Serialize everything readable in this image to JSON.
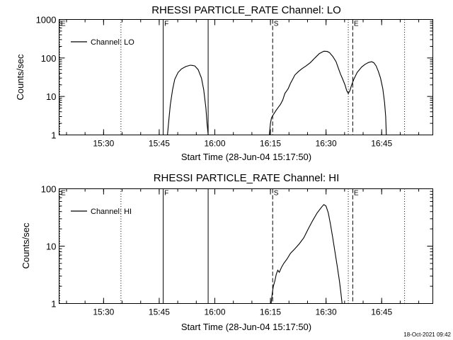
{
  "footer": {
    "timestamp": "18-Oct-2021 09:42"
  },
  "chart_data": [
    {
      "type": "line",
      "title": "RHESSI PARTICLE_RATE Channel: LO",
      "xlabel": "Start Time (28-Jun-04 15:17:50)",
      "ylabel": "Counts/sec",
      "yscale": "log",
      "xlim": [
        15.3,
        16.98
      ],
      "ylim": [
        1,
        1000
      ],
      "xticks": [
        {
          "t": 15.5,
          "label": "15:30"
        },
        {
          "t": 15.75,
          "label": "15:45"
        },
        {
          "t": 16.0,
          "label": "16:00"
        },
        {
          "t": 16.25,
          "label": "16:15"
        },
        {
          "t": 16.5,
          "label": "16:30"
        },
        {
          "t": 16.75,
          "label": "16:45"
        }
      ],
      "yticks": [
        {
          "v": 1,
          "label": "1"
        },
        {
          "v": 10,
          "label": "10"
        },
        {
          "v": 100,
          "label": "100"
        },
        {
          "v": 1000,
          "label": "1000"
        }
      ],
      "legend": {
        "label": "Channel: LO",
        "placement": "top-left"
      },
      "markers": [
        {
          "t": 15.303,
          "style": "dotted",
          "label": "E"
        },
        {
          "t": 15.578,
          "style": "dotted",
          "label": ""
        },
        {
          "t": 15.768,
          "style": "solid",
          "label": "F"
        },
        {
          "t": 15.97,
          "style": "solid",
          "label": ""
        },
        {
          "t": 16.26,
          "style": "dashed",
          "label": "S"
        },
        {
          "t": 16.6,
          "style": "dotted",
          "label": ""
        },
        {
          "t": 16.62,
          "style": "dashed",
          "label": "E"
        },
        {
          "t": 16.853,
          "style": "dotted",
          "label": ""
        }
      ],
      "series": [
        {
          "segments": [
            [
              [
                15.787,
                1
              ],
              [
                15.792,
                2
              ],
              [
                15.8,
                6
              ],
              [
                15.81,
                15
              ],
              [
                15.82,
                28
              ],
              [
                15.835,
                42
              ],
              [
                15.85,
                52
              ],
              [
                15.87,
                60
              ],
              [
                15.89,
                65
              ],
              [
                15.9,
                64
              ],
              [
                15.91,
                62
              ],
              [
                15.925,
                50
              ],
              [
                15.94,
                30
              ],
              [
                15.95,
                15
              ],
              [
                15.96,
                5
              ],
              [
                15.965,
                2
              ],
              [
                15.97,
                1
              ]
            ],
            [
              [
                16.245,
                1
              ],
              [
                16.25,
                2
              ],
              [
                16.255,
                2.8
              ],
              [
                16.265,
                3.5
              ],
              [
                16.275,
                4.3
              ],
              [
                16.285,
                5.2
              ],
              [
                16.295,
                6.2
              ],
              [
                16.305,
                8
              ],
              [
                16.315,
                12
              ],
              [
                16.33,
                16
              ],
              [
                16.34,
                22
              ],
              [
                16.35,
                28
              ],
              [
                16.36,
                36
              ],
              [
                16.375,
                44
              ],
              [
                16.39,
                52
              ],
              [
                16.41,
                62
              ],
              [
                16.43,
                76
              ],
              [
                16.45,
                100
              ],
              [
                16.47,
                130
              ],
              [
                16.49,
                150
              ],
              [
                16.505,
                148
              ],
              [
                16.515,
                138
              ],
              [
                16.53,
                110
              ],
              [
                16.545,
                80
              ],
              [
                16.555,
                55
              ],
              [
                16.565,
                38
              ],
              [
                16.575,
                28
              ],
              [
                16.585,
                20
              ],
              [
                16.593,
                14
              ],
              [
                16.6,
                12
              ],
              [
                16.607,
                14
              ],
              [
                16.615,
                20
              ],
              [
                16.625,
                28
              ],
              [
                16.64,
                42
              ],
              [
                16.66,
                58
              ],
              [
                16.675,
                68
              ],
              [
                16.69,
                76
              ],
              [
                16.705,
                80
              ],
              [
                16.715,
                75
              ],
              [
                16.725,
                62
              ],
              [
                16.735,
                45
              ],
              [
                16.745,
                30
              ],
              [
                16.755,
                16
              ],
              [
                16.763,
                7
              ],
              [
                16.768,
                3
              ],
              [
                16.771,
                1
              ]
            ]
          ]
        }
      ]
    },
    {
      "type": "line",
      "title": "RHESSI PARTICLE_RATE Channel: HI",
      "xlabel": "Start Time (28-Jun-04 15:17:50)",
      "ylabel": "Counts/sec",
      "yscale": "log",
      "xlim": [
        15.3,
        16.98
      ],
      "ylim": [
        1,
        100
      ],
      "xticks": [
        {
          "t": 15.5,
          "label": "15:30"
        },
        {
          "t": 15.75,
          "label": "15:45"
        },
        {
          "t": 16.0,
          "label": "16:00"
        },
        {
          "t": 16.25,
          "label": "16:15"
        },
        {
          "t": 16.5,
          "label": "16:30"
        },
        {
          "t": 16.75,
          "label": "16:45"
        }
      ],
      "yticks": [
        {
          "v": 1,
          "label": "1"
        },
        {
          "v": 10,
          "label": "10"
        },
        {
          "v": 100,
          "label": "100"
        }
      ],
      "legend": {
        "label": "Channel: HI",
        "placement": "top-left"
      },
      "markers": [
        {
          "t": 15.303,
          "style": "dotted",
          "label": "E"
        },
        {
          "t": 15.578,
          "style": "dotted",
          "label": ""
        },
        {
          "t": 15.768,
          "style": "solid",
          "label": "F"
        },
        {
          "t": 15.97,
          "style": "solid",
          "label": ""
        },
        {
          "t": 16.26,
          "style": "dashed",
          "label": "S"
        },
        {
          "t": 16.6,
          "style": "dotted",
          "label": ""
        },
        {
          "t": 16.62,
          "style": "dashed",
          "label": "E"
        },
        {
          "t": 16.853,
          "style": "dotted",
          "label": ""
        }
      ],
      "series": [
        {
          "segments": [
            [
              [
                16.253,
                1
              ],
              [
                16.258,
                1.5
              ],
              [
                16.263,
                2
              ],
              [
                16.27,
                2.5
              ],
              [
                16.276,
                3.2
              ],
              [
                16.283,
                3.8
              ],
              [
                16.29,
                3.5
              ],
              [
                16.3,
                4.3
              ],
              [
                16.31,
                5
              ],
              [
                16.325,
                6
              ],
              [
                16.34,
                7.5
              ],
              [
                16.36,
                9
              ],
              [
                16.38,
                11
              ],
              [
                16.4,
                14
              ],
              [
                16.42,
                20
              ],
              [
                16.44,
                28
              ],
              [
                16.46,
                38
              ],
              [
                16.48,
                48
              ],
              [
                16.49,
                53
              ],
              [
                16.5,
                50
              ],
              [
                16.51,
                38
              ],
              [
                16.52,
                24
              ],
              [
                16.53,
                14
              ],
              [
                16.54,
                8
              ],
              [
                16.55,
                4.5
              ],
              [
                16.56,
                2.5
              ],
              [
                16.567,
                1.5
              ],
              [
                16.572,
                1
              ]
            ]
          ]
        }
      ]
    }
  ]
}
